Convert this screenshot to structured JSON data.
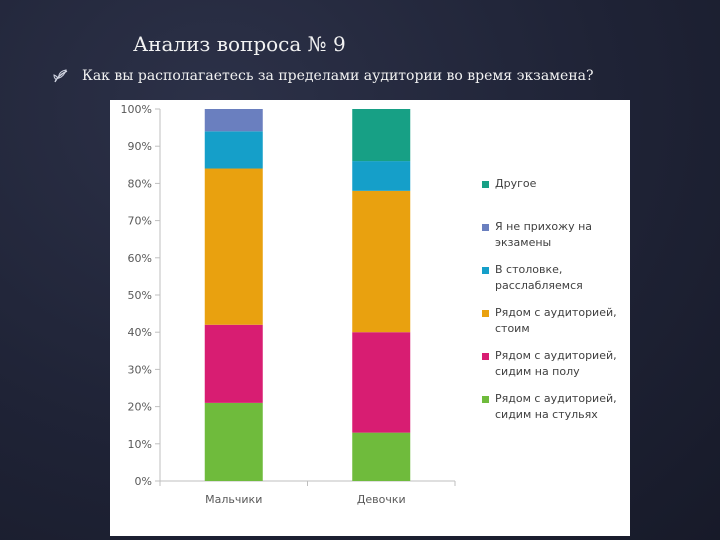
{
  "slide": {
    "title": "Анализ вопроса № 9",
    "bullet_icon": "sprout-bullet-icon",
    "question": "Как вы располагаетесь за пределами аудитории во время экзамена?"
  },
  "chart_data": {
    "type": "bar",
    "stacked": true,
    "categories": [
      "Мальчики",
      "Девочки"
    ],
    "ylim": [
      0,
      100
    ],
    "yticks": [
      "0%",
      "10%",
      "20%",
      "30%",
      "40%",
      "50%",
      "60%",
      "70%",
      "80%",
      "90%",
      "100%"
    ],
    "grid": false,
    "legend_position": "right",
    "series": [
      {
        "name": "Рядом с аудиторией, сидим на стульях",
        "color": "#6fbb3c",
        "values": [
          21,
          13
        ]
      },
      {
        "name": "Рядом с аудиторией, сидим на полу",
        "color": "#d81d72",
        "values": [
          21,
          27
        ]
      },
      {
        "name": "Рядом с аудиторией, стоим",
        "color": "#e9a10f",
        "values": [
          42,
          38
        ]
      },
      {
        "name": "В столовке, расслабляемся",
        "color": "#159fc9",
        "values": [
          10,
          8
        ]
      },
      {
        "name": "Я не прихожу на экзамены",
        "color": "#6a7fbf",
        "values": [
          6,
          0
        ]
      },
      {
        "name": "Другое",
        "color": "#17a085",
        "values": [
          0,
          14
        ]
      }
    ]
  }
}
